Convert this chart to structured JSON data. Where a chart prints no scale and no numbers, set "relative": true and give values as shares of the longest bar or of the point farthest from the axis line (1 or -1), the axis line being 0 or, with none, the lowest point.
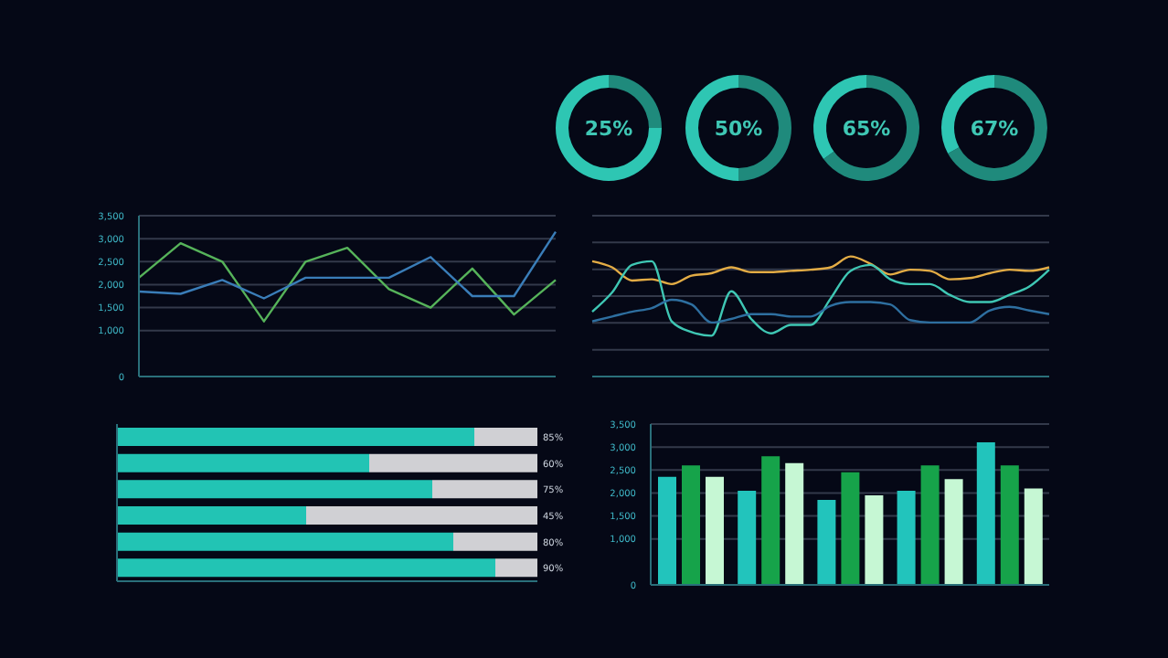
{
  "chart_data": [
    {
      "type": "donut",
      "categories": [
        null,
        null
      ],
      "values": [
        25,
        75
      ],
      "colors": [
        "#1f8a7c",
        "#2ec6b3"
      ],
      "annotations": [
        "25%"
      ]
    },
    {
      "type": "donut",
      "categories": [
        null,
        null
      ],
      "values": [
        50,
        50
      ],
      "colors": [
        "#1f8a7c",
        "#2ec6b3"
      ],
      "annotations": [
        "50%"
      ]
    },
    {
      "type": "donut",
      "categories": [
        null,
        null
      ],
      "values": [
        65,
        35
      ],
      "colors": [
        "#1f8a7c",
        "#2ec6b3"
      ],
      "annotations": [
        "65%"
      ]
    },
    {
      "type": "donut",
      "categories": [
        null,
        null
      ],
      "values": [
        67,
        33
      ],
      "colors": [
        "#1f8a7c",
        "#2ec6b3"
      ],
      "annotations": [
        "67%"
      ]
    },
    {
      "type": "line",
      "categories": [
        null,
        null,
        null,
        null,
        null,
        null,
        null,
        null,
        null,
        null,
        null
      ],
      "marker": "none",
      "grid": "y",
      "tick_labels": "y",
      "ylim": [
        0,
        3500
      ],
      "yticks": [
        0,
        {
          "value": 1000,
          "label": "1,000"
        },
        {
          "value": 1500,
          "label": "1,500"
        },
        {
          "value": 2000,
          "label": "2,000"
        },
        {
          "value": 2500,
          "label": "2,500"
        },
        {
          "value": 3000,
          "label": "3,000"
        },
        {
          "value": 3500,
          "label": "3,500"
        }
      ],
      "series": [
        {
          "color": "#56b35a",
          "values": [
            2150,
            2900,
            2500,
            1200,
            2500,
            2800,
            1900,
            1500,
            2350,
            1350,
            2100
          ]
        },
        {
          "color": "#3a7db8",
          "values": [
            1850,
            1800,
            2100,
            1700,
            2150,
            2150,
            2150,
            2600,
            1750,
            1750,
            3150
          ]
        }
      ]
    },
    {
      "type": "line",
      "relative": true,
      "marker": "none",
      "grid": "y",
      "tick_labels": false,
      "categories": [
        null,
        null,
        null,
        null,
        null,
        null,
        null,
        null,
        null,
        null,
        null,
        null,
        null,
        null,
        null,
        null,
        null,
        null,
        null,
        null,
        null,
        null,
        null,
        null
      ],
      "series": [
        {
          "color": "#e3ac45",
          "values": [
            0.96,
            0.91,
            0.8,
            0.81,
            0.77,
            0.84,
            0.86,
            0.91,
            0.87,
            0.87,
            0.88,
            0.89,
            0.91,
            1,
            0.94,
            0.85,
            0.89,
            0.88,
            0.81,
            0.82,
            0.86,
            0.89,
            0.88,
            0.91
          ]
        },
        {
          "color": "#3fc7b4",
          "values": [
            0.54,
            0.7,
            0.93,
            0.96,
            0.46,
            0.37,
            0.34,
            0.71,
            0.48,
            0.36,
            0.43,
            0.43,
            0.65,
            0.88,
            0.93,
            0.81,
            0.77,
            0.77,
            0.68,
            0.62,
            0.62,
            0.68,
            0.75,
            0.89
          ]
        },
        {
          "color": "#2e6fa0",
          "values": [
            0.46,
            0.5,
            0.54,
            0.57,
            0.64,
            0.6,
            0.45,
            0.48,
            0.52,
            0.52,
            0.5,
            0.5,
            0.59,
            0.62,
            0.62,
            0.6,
            0.47,
            0.45,
            0.45,
            0.45,
            0.55,
            0.58,
            0.55,
            0.52
          ]
        }
      ]
    },
    {
      "type": "bar",
      "orientation": "horizontal",
      "stacked": true,
      "tick_labels": false,
      "xlim": [
        0,
        100
      ],
      "categories": [
        null,
        null,
        null,
        null,
        null,
        null
      ],
      "series": [
        {
          "color": "#22c4b4",
          "values": [
            85,
            60,
            75,
            45,
            80,
            90
          ],
          "value_labels": [
            "85%",
            "60%",
            "75%",
            "45%",
            "80%",
            "90%"
          ]
        },
        {
          "color": "#d0d0d4",
          "values": [
            15,
            40,
            25,
            55,
            20,
            10
          ]
        }
      ]
    },
    {
      "type": "bar",
      "categories": [
        null,
        null,
        null,
        null,
        null
      ],
      "grid": "y",
      "tick_labels": "y",
      "ylim": [
        0,
        3500
      ],
      "yticks": [
        0,
        {
          "value": 1000,
          "label": "1,000"
        },
        {
          "value": 1500,
          "label": "1,500"
        },
        {
          "value": 2000,
          "label": "2,000"
        },
        {
          "value": 2500,
          "label": "2,500"
        },
        {
          "value": 3000,
          "label": "3,000"
        },
        {
          "value": 3500,
          "label": "3,500"
        }
      ],
      "series": [
        {
          "color": "#22c4bc",
          "values": [
            2350,
            2050,
            1850,
            2050,
            3100
          ]
        },
        {
          "color": "#16a34a",
          "values": [
            2600,
            2800,
            2450,
            2600,
            2600
          ]
        },
        {
          "color": "#c6f7d4",
          "values": [
            2350,
            2650,
            1950,
            2300,
            2100
          ]
        }
      ]
    }
  ]
}
